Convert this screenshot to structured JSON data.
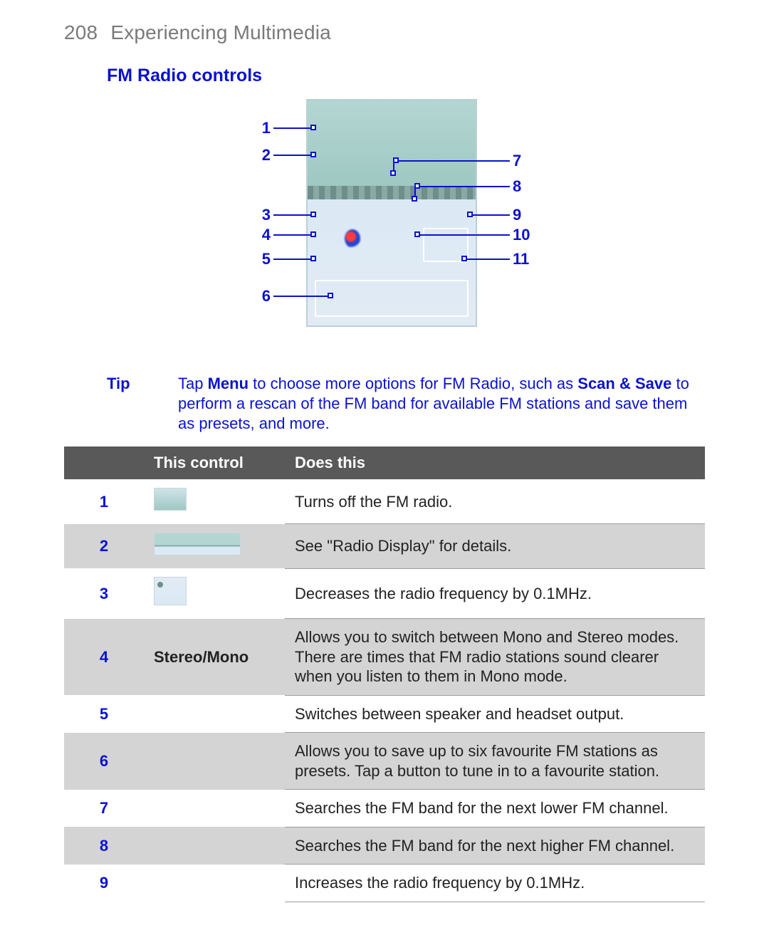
{
  "page": {
    "number": "208",
    "chapter": "Experiencing Multimedia"
  },
  "section_title": "FM Radio controls",
  "accent_color": "#0b12cf",
  "header_color": "#7a7a7a",
  "table_header_bg": "#595959",
  "table_alt_bg": "#d4d4d4",
  "diagram": {
    "screenshot_bg_upper": "#b4d6d2",
    "screenshot_bg_lower": "#dbe9f5",
    "border_color": "#b9d0d6",
    "left_callouts": [
      {
        "n": "1"
      },
      {
        "n": "2"
      },
      {
        "n": "3"
      },
      {
        "n": "4"
      },
      {
        "n": "5"
      },
      {
        "n": "6"
      }
    ],
    "right_callouts": [
      {
        "n": "7"
      },
      {
        "n": "8"
      },
      {
        "n": "9"
      },
      {
        "n": "10"
      },
      {
        "n": "11"
      }
    ]
  },
  "tip": {
    "label": "Tip",
    "pre": "Tap ",
    "b1": "Menu",
    "mid": " to choose more options for FM Radio, such as ",
    "b2": "Scan & Save",
    "post": " to perform a rescan of the FM band for available FM stations and save them as presets, and more."
  },
  "table": {
    "head": {
      "col1": "This control",
      "col2": "Does this"
    },
    "rows": [
      {
        "n": "1",
        "icon": "thumb1",
        "label": "",
        "desc": "Turns off the FM radio."
      },
      {
        "n": "2",
        "icon": "thumb2",
        "label": "",
        "desc": "See \"Radio Display\" for details."
      },
      {
        "n": "3",
        "icon": "thumb3",
        "label": "",
        "desc": "Decreases the radio frequency by 0.1MHz."
      },
      {
        "n": "4",
        "icon": "",
        "label": "Stereo/Mono",
        "desc": "Allows you to switch between Mono and Stereo modes. There are times that FM radio stations sound clearer when you listen to them in Mono mode."
      },
      {
        "n": "5",
        "icon": "",
        "label": "",
        "desc": "Switches between speaker and headset output."
      },
      {
        "n": "6",
        "icon": "",
        "label": "",
        "desc": "Allows you to save up to six favourite FM stations as presets. Tap a button to tune in to a favourite station."
      },
      {
        "n": "7",
        "icon": "",
        "label": "",
        "desc": "Searches the FM band for the next lower FM channel."
      },
      {
        "n": "8",
        "icon": "",
        "label": "",
        "desc": "Searches the FM band for the next higher FM channel."
      },
      {
        "n": "9",
        "icon": "",
        "label": "",
        "desc": "Increases the radio frequency by 0.1MHz."
      }
    ]
  }
}
